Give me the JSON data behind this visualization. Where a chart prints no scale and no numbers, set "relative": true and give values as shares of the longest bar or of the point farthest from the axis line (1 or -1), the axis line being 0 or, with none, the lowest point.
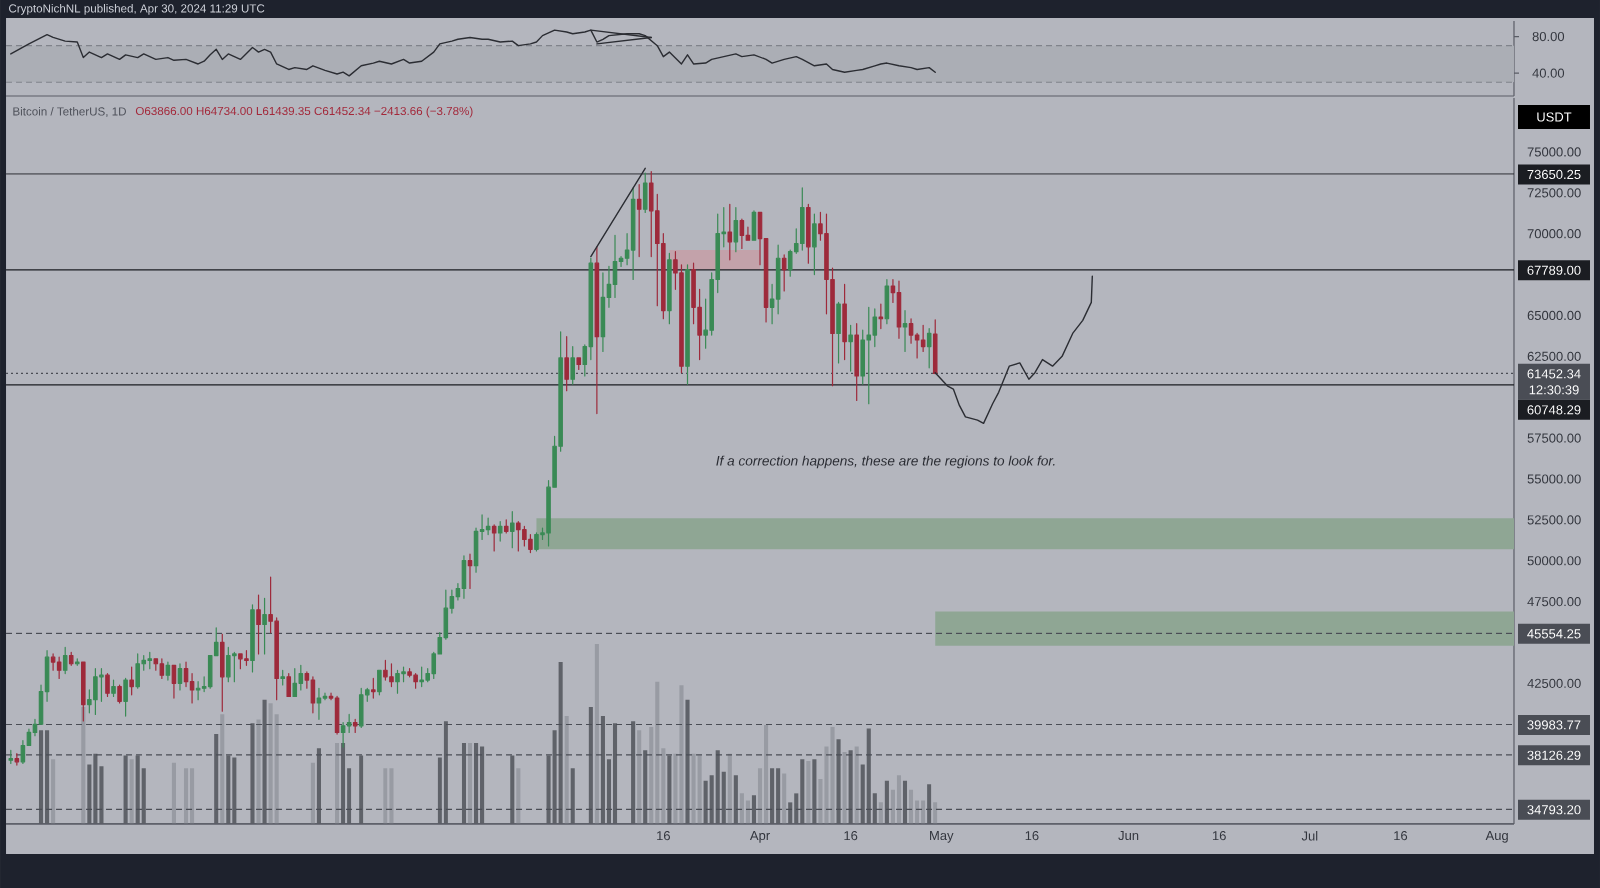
{
  "chart_data": [
    {
      "type": "line",
      "annotations": [
        "CryptoNichNL published, Apr 30, 2024 11:29 UTC"
      ],
      "xlim": [
        "2023-11-28T05:00",
        "2024-08-03T19:00"
      ],
      "ylim": [
        15,
        97
      ],
      "yticks": [
        {
          "value": 40,
          "label": "40.00"
        },
        {
          "value": 80,
          "label": "80.00"
        }
      ],
      "tick_labels": "y",
      "bands": [
        {
          "axis": "y",
          "from": 30,
          "to": 70,
          "color": "#abaeb5"
        }
      ],
      "ref_lines": [
        {
          "axis": "y",
          "value": 70,
          "color": "#80838b",
          "line_style": "dashed"
        },
        {
          "axis": "y",
          "value": 30,
          "color": "#80838b",
          "line_style": "dashed"
        }
      ],
      "series": [
        {
          "color": "#2b2d33",
          "x": [
            "2023-11-29",
            "2023-12-02",
            "2023-12-05",
            "2023-12-06",
            "2023-12-08",
            "2023-12-10",
            "2023-12-11",
            "2023-12-12",
            "2023-12-14",
            "2023-12-15",
            "2023-12-17",
            "2023-12-18",
            "2023-12-20",
            "2023-12-21",
            "2023-12-23",
            "2023-12-25",
            "2023-12-26",
            "2023-12-28",
            "2023-12-30",
            "2023-12-31",
            "2024-01-01",
            "2024-01-02",
            "2024-01-03",
            "2024-01-04",
            "2024-01-06",
            "2024-01-08",
            "2024-01-09",
            "2024-01-10",
            "2024-01-11",
            "2024-01-12",
            "2024-01-14",
            "2024-01-15",
            "2024-01-17",
            "2024-01-18",
            "2024-01-20",
            "2024-01-22",
            "2024-01-23",
            "2024-01-24",
            "2024-01-26",
            "2024-01-28",
            "2024-01-29",
            "2024-01-31",
            "2024-02-02",
            "2024-02-03",
            "2024-02-05",
            "2024-02-07",
            "2024-02-08",
            "2024-02-10",
            "2024-02-11",
            "2024-02-13",
            "2024-02-15",
            "2024-02-16",
            "2024-02-18",
            "2024-02-20",
            "2024-02-21",
            "2024-02-23",
            "2024-02-24",
            "2024-02-25",
            "2024-02-27",
            "2024-02-29",
            "2024-03-01",
            "2024-03-03",
            "2024-03-04",
            "2024-03-05",
            "2024-03-06",
            "2024-03-07",
            "2024-03-10",
            "2024-03-12",
            "2024-03-13",
            "2024-03-15",
            "2024-03-16",
            "2024-03-17",
            "2024-03-19",
            "2024-03-20",
            "2024-03-21",
            "2024-03-23",
            "2024-03-24",
            "2024-03-26",
            "2024-03-28",
            "2024-03-29",
            "2024-03-31",
            "2024-04-02",
            "2024-04-03",
            "2024-04-05",
            "2024-04-07",
            "2024-04-08",
            "2024-04-10",
            "2024-04-12",
            "2024-04-13",
            "2024-04-15",
            "2024-04-17",
            "2024-04-18",
            "2024-04-20",
            "2024-04-21",
            "2024-04-22",
            "2024-04-24",
            "2024-04-26",
            "2024-04-27",
            "2024-04-29",
            "2024-04-30"
          ],
          "values": [
            61,
            72,
            82,
            79,
            75,
            74,
            57,
            63,
            57,
            61,
            55,
            60,
            57,
            61,
            55,
            57,
            54,
            55,
            50,
            53,
            60,
            66,
            55,
            61,
            55,
            68,
            63,
            66,
            63,
            50,
            44,
            46,
            44,
            48,
            43,
            39,
            41,
            37,
            48,
            51,
            53,
            50,
            55,
            51,
            53,
            63,
            72,
            75,
            77,
            79,
            77,
            77,
            74,
            75,
            70,
            72,
            74,
            81,
            87,
            85,
            83,
            85,
            87,
            74,
            77,
            81,
            83,
            83,
            81,
            70,
            58,
            63,
            50,
            60,
            50,
            51,
            55,
            58,
            61,
            58,
            60,
            55,
            51,
            55,
            58,
            55,
            48,
            50,
            44,
            41,
            43,
            44,
            48,
            50,
            51,
            48,
            46,
            44,
            46,
            41
          ]
        },
        {
          "color": "#2b2d33",
          "x": [
            "2024-03-04",
            "2024-03-14"
          ],
          "values": [
            87,
            79
          ]
        },
        {
          "color": "#2b2d33",
          "x": [
            "2024-03-05",
            "2024-03-14"
          ],
          "values": [
            72,
            79
          ]
        }
      ]
    },
    {
      "type": "candlestick",
      "title": "Bitcoin / TetherUS, 1D",
      "subtitle": "O63866.00 H64734.00 L61439.35 C61452.34 −2413.66 (−3.78%)",
      "ylabel": "USDT",
      "xlim": [
        "2023-11-28T05:00",
        "2024-08-03T19:00"
      ],
      "ylim": [
        33900,
        78300
      ],
      "xticks": [
        {
          "value": "2024-03-16",
          "label": "16"
        },
        {
          "value": "2024-04-01",
          "label": "Apr"
        },
        {
          "value": "2024-04-16",
          "label": "16"
        },
        {
          "value": "2024-05-01",
          "label": "May"
        },
        {
          "value": "2024-05-16",
          "label": "16"
        },
        {
          "value": "2024-06-01",
          "label": "Jun"
        },
        {
          "value": "2024-06-16",
          "label": "16"
        },
        {
          "value": "2024-07-01",
          "label": "Jul"
        },
        {
          "value": "2024-07-16",
          "label": "16"
        },
        {
          "value": "2024-08-01",
          "label": "Aug"
        }
      ],
      "yticks": [
        {
          "value": 42500,
          "label": "42500.00"
        },
        {
          "value": 47500,
          "label": "47500.00"
        },
        {
          "value": 50000,
          "label": "50000.00"
        },
        {
          "value": 52500,
          "label": "52500.00"
        },
        {
          "value": 55000,
          "label": "55000.00"
        },
        {
          "value": 57500,
          "label": "57500.00"
        },
        {
          "value": 62500,
          "label": "62500.00"
        },
        {
          "value": 65000,
          "label": "65000.00"
        },
        {
          "value": 70000,
          "label": "70000.00"
        },
        {
          "value": 72500,
          "label": "72500.00"
        },
        {
          "value": 75000,
          "label": "75000.00"
        }
      ],
      "x": [
        "2023-11-29",
        "2023-11-30",
        "2023-12-01",
        "2023-12-02",
        "2023-12-03",
        "2023-12-04",
        "2023-12-05",
        "2023-12-06",
        "2023-12-07",
        "2023-12-08",
        "2023-12-09",
        "2023-12-10",
        "2023-12-11",
        "2023-12-12",
        "2023-12-13",
        "2023-12-14",
        "2023-12-15",
        "2023-12-16",
        "2023-12-17",
        "2023-12-18",
        "2023-12-19",
        "2023-12-20",
        "2023-12-21",
        "2023-12-22",
        "2023-12-23",
        "2023-12-24",
        "2023-12-25",
        "2023-12-26",
        "2023-12-27",
        "2023-12-28",
        "2023-12-29",
        "2023-12-30",
        "2023-12-31",
        "2024-01-01",
        "2024-01-02",
        "2024-01-03",
        "2024-01-04",
        "2024-01-05",
        "2024-01-06",
        "2024-01-07",
        "2024-01-08",
        "2024-01-09",
        "2024-01-10",
        "2024-01-11",
        "2024-01-12",
        "2024-01-13",
        "2024-01-14",
        "2024-01-15",
        "2024-01-16",
        "2024-01-17",
        "2024-01-18",
        "2024-01-19",
        "2024-01-20",
        "2024-01-21",
        "2024-01-22",
        "2024-01-23",
        "2024-01-24",
        "2024-01-25",
        "2024-01-26",
        "2024-01-27",
        "2024-01-28",
        "2024-01-29",
        "2024-01-30",
        "2024-01-31",
        "2024-02-01",
        "2024-02-02",
        "2024-02-03",
        "2024-02-04",
        "2024-02-05",
        "2024-02-06",
        "2024-02-07",
        "2024-02-08",
        "2024-02-09",
        "2024-02-10",
        "2024-02-11",
        "2024-02-12",
        "2024-02-13",
        "2024-02-14",
        "2024-02-15",
        "2024-02-16",
        "2024-02-17",
        "2024-02-18",
        "2024-02-19",
        "2024-02-20",
        "2024-02-21",
        "2024-02-22",
        "2024-02-23",
        "2024-02-24",
        "2024-02-25",
        "2024-02-26",
        "2024-02-27",
        "2024-02-28",
        "2024-02-29",
        "2024-03-01",
        "2024-03-02",
        "2024-03-03",
        "2024-03-04",
        "2024-03-05",
        "2024-03-06",
        "2024-03-07",
        "2024-03-08",
        "2024-03-09",
        "2024-03-10",
        "2024-03-11",
        "2024-03-12",
        "2024-03-13",
        "2024-03-14",
        "2024-03-15",
        "2024-03-16",
        "2024-03-17",
        "2024-03-18",
        "2024-03-19",
        "2024-03-20",
        "2024-03-21",
        "2024-03-22",
        "2024-03-23",
        "2024-03-24",
        "2024-03-25",
        "2024-03-26",
        "2024-03-27",
        "2024-03-28",
        "2024-03-29",
        "2024-03-30",
        "2024-03-31",
        "2024-04-01",
        "2024-04-02",
        "2024-04-03",
        "2024-04-04",
        "2024-04-05",
        "2024-04-06",
        "2024-04-07",
        "2024-04-08",
        "2024-04-09",
        "2024-04-10",
        "2024-04-11",
        "2024-04-12",
        "2024-04-13",
        "2024-04-14",
        "2024-04-15",
        "2024-04-16",
        "2024-04-17",
        "2024-04-18",
        "2024-04-19",
        "2024-04-20",
        "2024-04-21",
        "2024-04-22",
        "2024-04-23",
        "2024-04-24",
        "2024-04-25",
        "2024-04-26",
        "2024-04-27",
        "2024-04-28",
        "2024-04-29",
        "2024-04-30"
      ],
      "ohlc": [
        [
          37800,
          38400,
          37600,
          37900
        ],
        [
          37900,
          38200,
          37500,
          37700
        ],
        [
          37700,
          39000,
          37600,
          38700
        ],
        [
          38700,
          39700,
          38700,
          39500
        ],
        [
          39500,
          40300,
          39300,
          40000
        ],
        [
          40000,
          42400,
          40000,
          42000
        ],
        [
          42000,
          44500,
          41400,
          44100
        ],
        [
          44100,
          44300,
          43300,
          43800
        ],
        [
          43800,
          44100,
          42800,
          43300
        ],
        [
          43300,
          44700,
          43100,
          44200
        ],
        [
          44200,
          44400,
          43600,
          43700
        ],
        [
          43700,
          44000,
          43600,
          43800
        ],
        [
          43800,
          43800,
          40200,
          41200
        ],
        [
          41200,
          42100,
          40700,
          41500
        ],
        [
          41500,
          43400,
          40600,
          42900
        ],
        [
          42900,
          43400,
          41400,
          43000
        ],
        [
          43000,
          43100,
          41700,
          41900
        ],
        [
          41900,
          42700,
          41700,
          42300
        ],
        [
          42300,
          42400,
          41300,
          41400
        ],
        [
          41400,
          42800,
          40500,
          42700
        ],
        [
          42700,
          43500,
          41800,
          42300
        ],
        [
          42300,
          44300,
          42200,
          43700
        ],
        [
          43700,
          44200,
          43300,
          43900
        ],
        [
          43900,
          44400,
          43400,
          44000
        ],
        [
          44000,
          44000,
          43300,
          43700
        ],
        [
          43700,
          44000,
          42800,
          43000
        ],
        [
          43000,
          43800,
          42700,
          43600
        ],
        [
          43600,
          43600,
          41600,
          42500
        ],
        [
          42500,
          43700,
          42100,
          43400
        ],
        [
          43400,
          43800,
          42300,
          42600
        ],
        [
          42600,
          43100,
          41300,
          42100
        ],
        [
          42100,
          42600,
          41500,
          42200
        ],
        [
          42200,
          42900,
          42000,
          42300
        ],
        [
          42300,
          44200,
          42200,
          44200
        ],
        [
          44200,
          45900,
          44200,
          45000
        ],
        [
          45000,
          45500,
          40800,
          42900
        ],
        [
          42900,
          44700,
          42600,
          44200
        ],
        [
          44200,
          44400,
          42600,
          44300
        ],
        [
          44300,
          44300,
          43400,
          44000
        ],
        [
          44000,
          44500,
          43600,
          43900
        ],
        [
          43900,
          47300,
          43200,
          47000
        ],
        [
          47000,
          47900,
          44300,
          46100
        ],
        [
          46100,
          47700,
          44300,
          46700
        ],
        [
          46700,
          49000,
          45600,
          46300
        ],
        [
          46300,
          46500,
          41500,
          42800
        ],
        [
          42800,
          43300,
          42400,
          42900
        ],
        [
          42900,
          43100,
          41700,
          41700
        ],
        [
          41700,
          43400,
          41700,
          42500
        ],
        [
          42500,
          43600,
          42100,
          43100
        ],
        [
          43100,
          43200,
          42200,
          42700
        ],
        [
          42700,
          42900,
          40700,
          41300
        ],
        [
          41300,
          42200,
          40300,
          41600
        ],
        [
          41600,
          41900,
          41500,
          41700
        ],
        [
          41700,
          41900,
          41500,
          41600
        ],
        [
          41600,
          41700,
          39400,
          39500
        ],
        [
          39500,
          40100,
          38600,
          39900
        ],
        [
          39900,
          40600,
          39500,
          40100
        ],
        [
          40100,
          40300,
          39500,
          39900
        ],
        [
          39900,
          42200,
          39800,
          41800
        ],
        [
          41800,
          42200,
          41400,
          42100
        ],
        [
          42100,
          42800,
          41600,
          42000
        ],
        [
          42000,
          43300,
          41800,
          43300
        ],
        [
          43300,
          43900,
          42700,
          42900
        ],
        [
          42900,
          43700,
          42300,
          42600
        ],
        [
          42600,
          43300,
          41900,
          43100
        ],
        [
          43100,
          43500,
          42600,
          43200
        ],
        [
          43200,
          43400,
          42900,
          43000
        ],
        [
          43000,
          43100,
          42200,
          42600
        ],
        [
          42600,
          43500,
          42300,
          42700
        ],
        [
          42700,
          43400,
          42600,
          43100
        ],
        [
          43100,
          44400,
          42800,
          44300
        ],
        [
          44300,
          45600,
          44300,
          45300
        ],
        [
          45300,
          48200,
          45200,
          47100
        ],
        [
          47100,
          48200,
          46800,
          47800
        ],
        [
          47800,
          48600,
          47600,
          48300
        ],
        [
          48300,
          50300,
          47700,
          50000
        ],
        [
          50000,
          50400,
          48300,
          49700
        ],
        [
          49700,
          52000,
          49300,
          51800
        ],
        [
          51800,
          52800,
          51300,
          51900
        ],
        [
          51900,
          52600,
          51600,
          52100
        ],
        [
          52100,
          52200,
          50600,
          51700
        ],
        [
          51700,
          52400,
          51200,
          52100
        ],
        [
          52100,
          52500,
          51700,
          51800
        ],
        [
          51800,
          53000,
          50800,
          52300
        ],
        [
          52300,
          52400,
          50600,
          51900
        ],
        [
          51900,
          52100,
          50900,
          51300
        ],
        [
          51300,
          51600,
          50500,
          50700
        ],
        [
          50700,
          51700,
          50600,
          51600
        ],
        [
          51600,
          52000,
          51300,
          51700
        ],
        [
          51700,
          54900,
          50900,
          54500
        ],
        [
          54500,
          57600,
          54500,
          57000
        ],
        [
          57000,
          64000,
          56700,
          62400
        ],
        [
          62400,
          63700,
          60400,
          61100
        ],
        [
          61100,
          63100,
          60800,
          62400
        ],
        [
          62400,
          62400,
          61700,
          62000
        ],
        [
          62000,
          63200,
          61300,
          63100
        ],
        [
          63100,
          68500,
          62300,
          68200
        ],
        [
          68200,
          69200,
          59000,
          63700
        ],
        [
          63700,
          67600,
          62800,
          66100
        ],
        [
          66100,
          68000,
          65500,
          66900
        ],
        [
          66900,
          69900,
          66100,
          68300
        ],
        [
          68300,
          68600,
          68000,
          68500
        ],
        [
          68500,
          70000,
          68100,
          69000
        ],
        [
          69000,
          72800,
          67200,
          72100
        ],
        [
          72100,
          73000,
          68600,
          71500
        ],
        [
          71500,
          73700,
          71300,
          73100
        ],
        [
          73100,
          73800,
          68600,
          71400
        ],
        [
          71400,
          72400,
          65600,
          69400
        ],
        [
          69400,
          70000,
          64800,
          65300
        ],
        [
          65300,
          68800,
          64500,
          68400
        ],
        [
          68400,
          68900,
          66600,
          67600
        ],
        [
          67600,
          68100,
          61500,
          61900
        ],
        [
          61900,
          68100,
          60800,
          67800
        ],
        [
          67800,
          68200,
          64500,
          65500
        ],
        [
          65500,
          66600,
          62300,
          63800
        ],
        [
          63800,
          66000,
          63000,
          64100
        ],
        [
          64100,
          67600,
          63800,
          67200
        ],
        [
          67200,
          71200,
          66400,
          70000
        ],
        [
          70000,
          71600,
          69200,
          70100
        ],
        [
          70100,
          71800,
          68400,
          69500
        ],
        [
          69500,
          71600,
          68900,
          70800
        ],
        [
          70800,
          70900,
          69100,
          69900
        ],
        [
          69900,
          70400,
          69600,
          69600
        ],
        [
          69600,
          71400,
          69600,
          71300
        ],
        [
          71300,
          71300,
          68100,
          69700
        ],
        [
          69700,
          69700,
          64600,
          65500
        ],
        [
          65500,
          66900,
          64500,
          66000
        ],
        [
          66000,
          69300,
          65100,
          68500
        ],
        [
          68500,
          68700,
          66500,
          67800
        ],
        [
          67800,
          69000,
          67400,
          68900
        ],
        [
          68900,
          70300,
          68800,
          69400
        ],
        [
          69400,
          72800,
          69000,
          71600
        ],
        [
          71600,
          71800,
          68200,
          69200
        ],
        [
          69200,
          71200,
          67500,
          70600
        ],
        [
          70600,
          71300,
          69600,
          70000
        ],
        [
          70000,
          71200,
          65100,
          67200
        ],
        [
          67200,
          67900,
          60700,
          63900
        ],
        [
          63900,
          65800,
          62100,
          65700
        ],
        [
          65700,
          66900,
          62300,
          63400
        ],
        [
          63400,
          64400,
          61600,
          63800
        ],
        [
          63800,
          64500,
          59800,
          61300
        ],
        [
          61300,
          64100,
          60800,
          63500
        ],
        [
          63500,
          65500,
          59600,
          63800
        ],
        [
          63800,
          65400,
          63100,
          64900
        ],
        [
          64900,
          65700,
          64200,
          64800
        ],
        [
          64800,
          67200,
          64500,
          66800
        ],
        [
          66800,
          67200,
          65800,
          66400
        ],
        [
          66400,
          67100,
          63600,
          64300
        ],
        [
          64300,
          65300,
          62800,
          64500
        ],
        [
          64500,
          64800,
          63300,
          63800
        ],
        [
          63800,
          63900,
          62400,
          63500
        ],
        [
          63500,
          64400,
          62800,
          63100
        ],
        [
          63100,
          64200,
          61800,
          63900
        ],
        [
          63866,
          64734,
          61439.35,
          61452.34
        ]
      ],
      "colors": [
        "#3a8a55",
        "#9e2a3b",
        "#3a8a55",
        "#3a8a55",
        "#3a8a55",
        "#3a8a55",
        "#3a8a55",
        "#9e2a3b",
        "#9e2a3b",
        "#3a8a55",
        "#9e2a3b",
        "#3a8a55",
        "#9e2a3b",
        "#3a8a55",
        "#3a8a55",
        "#3a8a55",
        "#9e2a3b",
        "#3a8a55",
        "#9e2a3b",
        "#3a8a55",
        "#9e2a3b",
        "#3a8a55",
        "#3a8a55",
        "#3a8a55",
        "#9e2a3b",
        "#9e2a3b",
        "#3a8a55",
        "#9e2a3b",
        "#3a8a55",
        "#9e2a3b",
        "#9e2a3b",
        "#3a8a55",
        "#3a8a55",
        "#3a8a55",
        "#3a8a55",
        "#9e2a3b",
        "#3a8a55",
        "#3a8a55",
        "#9e2a3b",
        "#9e2a3b",
        "#3a8a55",
        "#9e2a3b",
        "#3a8a55",
        "#9e2a3b",
        "#9e2a3b",
        "#3a8a55",
        "#9e2a3b",
        "#3a8a55",
        "#3a8a55",
        "#9e2a3b",
        "#9e2a3b",
        "#3a8a55",
        "#3a8a55",
        "#9e2a3b",
        "#9e2a3b",
        "#3a8a55",
        "#3a8a55",
        "#9e2a3b",
        "#3a8a55",
        "#3a8a55",
        "#9e2a3b",
        "#3a8a55",
        "#9e2a3b",
        "#9e2a3b",
        "#3a8a55",
        "#3a8a55",
        "#9e2a3b",
        "#9e2a3b",
        "#3a8a55",
        "#3a8a55",
        "#3a8a55",
        "#3a8a55",
        "#3a8a55",
        "#3a8a55",
        "#3a8a55",
        "#3a8a55",
        "#9e2a3b",
        "#3a8a55",
        "#3a8a55",
        "#3a8a55",
        "#9e2a3b",
        "#3a8a55",
        "#9e2a3b",
        "#3a8a55",
        "#9e2a3b",
        "#9e2a3b",
        "#9e2a3b",
        "#3a8a55",
        "#3a8a55",
        "#3a8a55",
        "#3a8a55",
        "#3a8a55",
        "#9e2a3b",
        "#3a8a55",
        "#9e2a3b",
        "#3a8a55",
        "#3a8a55",
        "#9e2a3b",
        "#3a8a55",
        "#3a8a55",
        "#3a8a55",
        "#3a8a55",
        "#3a8a55",
        "#3a8a55",
        "#9e2a3b",
        "#3a8a55",
        "#9e2a3b",
        "#9e2a3b",
        "#9e2a3b",
        "#3a8a55",
        "#9e2a3b",
        "#9e2a3b",
        "#3a8a55",
        "#9e2a3b",
        "#9e2a3b",
        "#3a8a55",
        "#3a8a55",
        "#3a8a55",
        "#3a8a55",
        "#9e2a3b",
        "#3a8a55",
        "#9e2a3b",
        "#9e2a3b",
        "#3a8a55",
        "#9e2a3b",
        "#9e2a3b",
        "#3a8a55",
        "#3a8a55",
        "#9e2a3b",
        "#3a8a55",
        "#3a8a55",
        "#3a8a55",
        "#9e2a3b",
        "#3a8a55",
        "#9e2a3b",
        "#9e2a3b",
        "#9e2a3b",
        "#3a8a55",
        "#9e2a3b",
        "#3a8a55",
        "#9e2a3b",
        "#3a8a55",
        "#3a8a55",
        "#3a8a55",
        "#9e2a3b",
        "#3a8a55",
        "#9e2a3b",
        "#9e2a3b",
        "#3a8a55",
        "#9e2a3b",
        "#9e2a3b",
        "#9e2a3b",
        "#3a8a55",
        "#9e2a3b"
      ],
      "series": [
        {
          "type": "area",
          "color": "#8fa694",
          "x": [
            "2024-02-24",
            "2024-08-03T19:00"
          ],
          "values": [
            null,
            null
          ],
          "lower": [
            50700,
            50700
          ],
          "upper": [
            52600,
            52600
          ]
        },
        {
          "type": "area",
          "color": "#8fa694",
          "x": [
            "2024-04-30",
            "2024-08-03T19:00"
          ],
          "values": [
            null,
            null
          ],
          "lower": [
            44800,
            44800
          ],
          "upper": [
            46900,
            46900
          ]
        },
        {
          "type": "area",
          "color": "#c3a2aa",
          "x": [
            "2024-03-17",
            "2024-04-01"
          ],
          "values": [
            null,
            null
          ],
          "lower": [
            67800,
            67800
          ],
          "upper": [
            69000,
            69000
          ]
        },
        {
          "type": "line",
          "color": "#2b2d33",
          "x": [
            "2024-03-04",
            "2024-03-13"
          ],
          "values": [
            68600,
            74000
          ]
        },
        {
          "type": "line",
          "color": "#2b2d33",
          "x": [
            "2024-04-30",
            "2024-05-02",
            "2024-05-03",
            "2024-05-04",
            "2024-05-05",
            "2024-05-07",
            "2024-05-08",
            "2024-05-09T12:00",
            "2024-05-10T12:00",
            "2024-05-12T06:00",
            "2024-05-14",
            "2024-05-15T12:00",
            "2024-05-16T12:00",
            "2024-05-17T18:00",
            "2024-05-19T10:00",
            "2024-05-21",
            "2024-05-22T18:00",
            "2024-05-24T10:00",
            "2024-05-25T20:00",
            "2024-05-26"
          ],
          "values": [
            61500,
            60700,
            60500,
            59500,
            58800,
            58600,
            58400,
            59600,
            60300,
            61900,
            62100,
            61100,
            61500,
            62300,
            61900,
            62500,
            63900,
            64700,
            65800,
            67400
          ]
        }
      ],
      "ref_lines": [
        {
          "axis": "y",
          "value": 73650.25,
          "label": "73650.25",
          "color": "#1b1d22",
          "line_style": "solid"
        },
        {
          "axis": "y",
          "value": 67789,
          "label": "67789.00",
          "color": "#1b1d22",
          "line_style": "solid"
        },
        {
          "axis": "y",
          "value": 61452.34,
          "label": "61452.34 12:30:39",
          "color": "#4a4d55",
          "line_style": "dotted"
        },
        {
          "axis": "y",
          "value": 60748.29,
          "label": "60748.29",
          "color": "#1b1d22",
          "line_style": "solid"
        },
        {
          "axis": "y",
          "value": 45554.25,
          "label": "45554.25",
          "color": "#4a4d55",
          "line_style": "dashed"
        },
        {
          "axis": "y",
          "value": 39983.77,
          "label": "39983.77",
          "color": "#4a4d55",
          "line_style": "dashed"
        },
        {
          "axis": "y",
          "value": 38126.29,
          "label": "38126.29",
          "color": "#4a4d55",
          "line_style": "dashed"
        },
        {
          "axis": "y",
          "value": 34793.2,
          "label": "34793.20",
          "color": "#4a4d55",
          "line_style": "dashed"
        }
      ],
      "annotations": [
        "If a correction happens, these are the regions to look for."
      ]
    },
    {
      "type": "bar",
      "relative": true,
      "tick_labels": false,
      "xlim": [
        "2023-11-28T05:00",
        "2024-08-03T19:00"
      ],
      "x": [
        "2023-12-04",
        "2023-12-05",
        "2023-12-06",
        "2023-12-11",
        "2023-12-12",
        "2023-12-13",
        "2023-12-14",
        "2023-12-18",
        "2023-12-19",
        "2023-12-20",
        "2023-12-21",
        "2023-12-26",
        "2023-12-28",
        "2023-12-29",
        "2024-01-02",
        "2024-01-03",
        "2024-01-04",
        "2024-01-05",
        "2024-01-08",
        "2024-01-09",
        "2024-01-10",
        "2024-01-11",
        "2024-01-12",
        "2024-01-18",
        "2024-01-19",
        "2024-01-22",
        "2024-01-23",
        "2024-01-24",
        "2024-01-26",
        "2024-01-30",
        "2024-01-31",
        "2024-02-08",
        "2024-02-09",
        "2024-02-12",
        "2024-02-13",
        "2024-02-14",
        "2024-02-15",
        "2024-02-20",
        "2024-02-21",
        "2024-02-26",
        "2024-02-27",
        "2024-02-28",
        "2024-02-29",
        "2024-03-01",
        "2024-03-04",
        "2024-03-05",
        "2024-03-06",
        "2024-03-07",
        "2024-03-08",
        "2024-03-11",
        "2024-03-12",
        "2024-03-13",
        "2024-03-14",
        "2024-03-15",
        "2024-03-16",
        "2024-03-17",
        "2024-03-18",
        "2024-03-19",
        "2024-03-20",
        "2024-03-21",
        "2024-03-22",
        "2024-03-23",
        "2024-03-24",
        "2024-03-25",
        "2024-03-26",
        "2024-03-27",
        "2024-03-28",
        "2024-03-29",
        "2024-03-30",
        "2024-03-31",
        "2024-04-01",
        "2024-04-02",
        "2024-04-03",
        "2024-04-04",
        "2024-04-05",
        "2024-04-06",
        "2024-04-07",
        "2024-04-08",
        "2024-04-09",
        "2024-04-10",
        "2024-04-11",
        "2024-04-12",
        "2024-04-13",
        "2024-04-14",
        "2024-04-15",
        "2024-04-16",
        "2024-04-17",
        "2024-04-18",
        "2024-04-19",
        "2024-04-20",
        "2024-04-21",
        "2024-04-22",
        "2024-04-23",
        "2024-04-24",
        "2024-04-25",
        "2024-04-26",
        "2024-04-27",
        "2024-04-28",
        "2024-04-29",
        "2024-04-30"
      ],
      "values": [
        0.52,
        0.52,
        0.36,
        0.65,
        0.33,
        0.39,
        0.32,
        0.38,
        0.36,
        0.38,
        0.31,
        0.34,
        0.31,
        0.31,
        0.5,
        0.61,
        0.38,
        0.37,
        0.56,
        0.58,
        0.69,
        0.67,
        0.61,
        0.34,
        0.42,
        0.45,
        0.45,
        0.31,
        0.38,
        0.31,
        0.31,
        0.37,
        0.57,
        0.45,
        0.45,
        0.45,
        0.43,
        0.38,
        0.31,
        0.38,
        0.52,
        0.9,
        0.6,
        0.31,
        0.65,
        1,
        0.6,
        0.36,
        0.56,
        0.57,
        0.52,
        0.41,
        0.54,
        0.79,
        0.42,
        0.38,
        0.39,
        0.77,
        0.69,
        0.39,
        0.38,
        0.24,
        0.27,
        0.41,
        0.29,
        0.39,
        0.27,
        0.17,
        0.13,
        0.16,
        0.31,
        0.55,
        0.31,
        0.31,
        0.28,
        0.12,
        0.17,
        0.36,
        0.35,
        0.36,
        0.25,
        0.43,
        0.54,
        0.47,
        0.4,
        0.41,
        0.43,
        0.33,
        0.53,
        0.17,
        0.12,
        0.24,
        0.19,
        0.27,
        0.24,
        0.19,
        0.13,
        0.13,
        0.22,
        0.12
      ],
      "colors": [
        "#5f6269",
        "#5f6269",
        "#989ba3",
        "#989ba3",
        "#5f6269",
        "#5f6269",
        "#5f6269",
        "#5f6269",
        "#989ba3",
        "#5f6269",
        "#5f6269",
        "#989ba3",
        "#989ba3",
        "#989ba3",
        "#5f6269",
        "#989ba3",
        "#5f6269",
        "#5f6269",
        "#5f6269",
        "#989ba3",
        "#5f6269",
        "#989ba3",
        "#989ba3",
        "#989ba3",
        "#5f6269",
        "#989ba3",
        "#5f6269",
        "#5f6269",
        "#5f6269",
        "#989ba3",
        "#989ba3",
        "#5f6269",
        "#5f6269",
        "#5f6269",
        "#989ba3",
        "#5f6269",
        "#5f6269",
        "#5f6269",
        "#989ba3",
        "#5f6269",
        "#5f6269",
        "#5f6269",
        "#989ba3",
        "#5f6269",
        "#5f6269",
        "#989ba3",
        "#5f6269",
        "#5f6269",
        "#5f6269",
        "#5f6269",
        "#989ba3",
        "#5f6269",
        "#989ba3",
        "#989ba3",
        "#989ba3",
        "#5f6269",
        "#989ba3",
        "#989ba3",
        "#5f6269",
        "#989ba3",
        "#989ba3",
        "#5f6269",
        "#5f6269",
        "#5f6269",
        "#5f6269",
        "#989ba3",
        "#5f6269",
        "#989ba3",
        "#989ba3",
        "#5f6269",
        "#989ba3",
        "#989ba3",
        "#5f6269",
        "#5f6269",
        "#989ba3",
        "#5f6269",
        "#5f6269",
        "#5f6269",
        "#989ba3",
        "#5f6269",
        "#989ba3",
        "#989ba3",
        "#989ba3",
        "#5f6269",
        "#989ba3",
        "#5f6269",
        "#989ba3",
        "#5f6269",
        "#5f6269",
        "#5f6269",
        "#989ba3",
        "#5f6269",
        "#989ba3",
        "#989ba3",
        "#5f6269",
        "#989ba3",
        "#989ba3",
        "#989ba3",
        "#5f6269",
        "#989ba3"
      ]
    }
  ]
}
